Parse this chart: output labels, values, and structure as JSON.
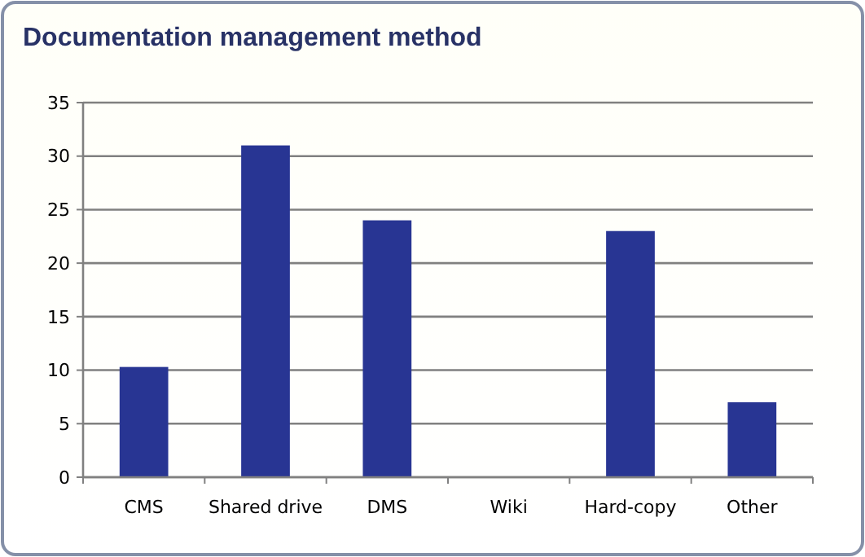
{
  "chart_data": {
    "type": "bar",
    "title": "Documentation management method",
    "categories": [
      "CMS",
      "Shared drive",
      "DMS",
      "Wiki",
      "Hard-copy",
      "Other"
    ],
    "values": [
      10.3,
      31,
      24,
      0,
      23,
      7
    ],
    "color": "#283593",
    "ylim": [
      0,
      35
    ],
    "yticks": [
      0,
      5,
      10,
      15,
      20,
      25,
      30,
      35
    ],
    "grid": "y"
  }
}
